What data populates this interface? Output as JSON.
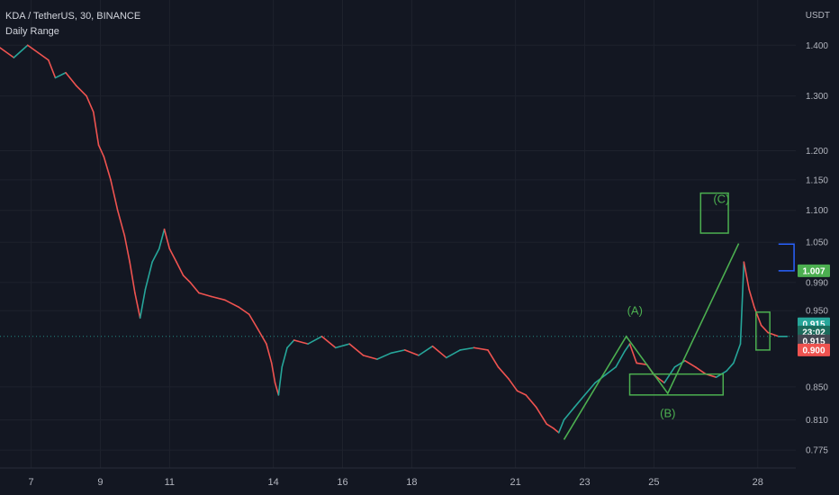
{
  "header": {
    "title": "KDA / TetherUS, 30, BINANCE",
    "indicator": "Daily Range",
    "unit": "USDT"
  },
  "colors": {
    "background": "#131722",
    "up": "#26a69a",
    "down": "#ef5350",
    "pattern": "#4caf50",
    "daily_range": "#2962ff",
    "grid": "#1e222d",
    "text": "#b2b5be"
  },
  "chart_data": {
    "type": "line",
    "symbol": "KDA / TetherUS",
    "interval": "30",
    "exchange": "BINANCE",
    "scale": "log",
    "grid": true,
    "x_ticks": [
      {
        "label": "7",
        "day": 7
      },
      {
        "label": "9",
        "day": 9
      },
      {
        "label": "11",
        "day": 11
      },
      {
        "label": "14",
        "day": 14
      },
      {
        "label": "16",
        "day": 16
      },
      {
        "label": "18",
        "day": 18
      },
      {
        "label": "21",
        "day": 21
      },
      {
        "label": "23",
        "day": 23
      },
      {
        "label": "25",
        "day": 25
      },
      {
        "label": "28",
        "day": 28
      }
    ],
    "y_ticks": [
      "1.400",
      "1.300",
      "1.200",
      "1.150",
      "1.100",
      "1.050",
      "0.990",
      "0.950",
      "0.850",
      "0.810",
      "0.775"
    ],
    "x_range": [
      6.1,
      29.1
    ],
    "y_range": [
      0.755,
      1.48
    ],
    "series": [
      {
        "points": [
          [
            6.1,
            1.395
          ],
          [
            6.5,
            1.375
          ],
          [
            6.9,
            1.4
          ],
          [
            7.2,
            1.385
          ],
          [
            7.5,
            1.37
          ],
          [
            7.7,
            1.335
          ],
          [
            8.0,
            1.345
          ],
          [
            8.3,
            1.32
          ],
          [
            8.6,
            1.3
          ],
          [
            8.8,
            1.27
          ],
          [
            8.95,
            1.21
          ],
          [
            9.1,
            1.19
          ],
          [
            9.3,
            1.15
          ],
          [
            9.5,
            1.1
          ],
          [
            9.7,
            1.06
          ],
          [
            9.85,
            1.02
          ],
          [
            10.0,
            0.975
          ],
          [
            10.15,
            0.94
          ],
          [
            10.3,
            0.98
          ],
          [
            10.5,
            1.02
          ],
          [
            10.7,
            1.04
          ],
          [
            10.85,
            1.07
          ],
          [
            11.0,
            1.04
          ],
          [
            11.2,
            1.02
          ],
          [
            11.4,
            1.0
          ],
          [
            11.6,
            0.99
          ],
          [
            11.85,
            0.975
          ],
          [
            12.2,
            0.97
          ],
          [
            12.6,
            0.965
          ],
          [
            13.0,
            0.955
          ],
          [
            13.3,
            0.945
          ],
          [
            13.55,
            0.925
          ],
          [
            13.8,
            0.905
          ],
          [
            13.95,
            0.88
          ],
          [
            14.05,
            0.855
          ],
          [
            14.15,
            0.84
          ],
          [
            14.25,
            0.875
          ],
          [
            14.4,
            0.9
          ],
          [
            14.6,
            0.91
          ],
          [
            15.0,
            0.905
          ],
          [
            15.4,
            0.915
          ],
          [
            15.8,
            0.9
          ],
          [
            16.2,
            0.905
          ],
          [
            16.6,
            0.89
          ],
          [
            17.0,
            0.885
          ],
          [
            17.4,
            0.893
          ],
          [
            17.8,
            0.897
          ],
          [
            18.2,
            0.89
          ],
          [
            18.6,
            0.902
          ],
          [
            19.0,
            0.887
          ],
          [
            19.4,
            0.897
          ],
          [
            19.8,
            0.9
          ],
          [
            20.2,
            0.897
          ],
          [
            20.5,
            0.875
          ],
          [
            20.8,
            0.86
          ],
          [
            21.05,
            0.845
          ],
          [
            21.3,
            0.84
          ],
          [
            21.6,
            0.825
          ],
          [
            21.9,
            0.805
          ],
          [
            22.1,
            0.8
          ],
          [
            22.25,
            0.795
          ],
          [
            22.4,
            0.81
          ],
          [
            22.7,
            0.825
          ],
          [
            23.0,
            0.84
          ],
          [
            23.3,
            0.855
          ],
          [
            23.6,
            0.865
          ],
          [
            23.9,
            0.875
          ],
          [
            24.15,
            0.895
          ],
          [
            24.3,
            0.905
          ],
          [
            24.5,
            0.88
          ],
          [
            24.8,
            0.878
          ],
          [
            25.0,
            0.865
          ],
          [
            25.3,
            0.855
          ],
          [
            25.6,
            0.875
          ],
          [
            25.9,
            0.883
          ],
          [
            26.2,
            0.875
          ],
          [
            26.5,
            0.866
          ],
          [
            26.8,
            0.862
          ],
          [
            27.1,
            0.87
          ],
          [
            27.3,
            0.88
          ],
          [
            27.5,
            0.905
          ],
          [
            27.6,
            1.02
          ],
          [
            27.75,
            0.98
          ],
          [
            27.9,
            0.955
          ],
          [
            28.1,
            0.93
          ],
          [
            28.3,
            0.92
          ],
          [
            28.6,
            0.915
          ],
          [
            28.85,
            0.915
          ]
        ]
      }
    ],
    "annotations": [
      {
        "label": "(A)",
        "day": 24.45,
        "price": 0.945
      },
      {
        "label": "(B)",
        "day": 25.4,
        "price": 0.813
      },
      {
        "label": "(C)",
        "day": 26.95,
        "price": 1.112
      }
    ],
    "pattern_lines": [
      [
        22.4,
        0.787
      ],
      [
        24.2,
        0.915
      ],
      [
        25.4,
        0.842
      ],
      [
        27.45,
        1.048
      ]
    ],
    "boxes": [
      {
        "day_from": 24.3,
        "day_to": 27.0,
        "price_top": 0.866,
        "price_bottom": 0.84
      },
      {
        "day_from": 26.35,
        "day_to": 27.15,
        "price_top": 1.128,
        "price_bottom": 1.064
      },
      {
        "day_from": 27.95,
        "day_to": 28.35,
        "price_top": 0.948,
        "price_bottom": 0.897
      }
    ],
    "daily_range": {
      "day_from": 28.6,
      "day_to": 29.05,
      "high": 1.047,
      "low": 1.007
    },
    "current_price": 0.915,
    "price_labels": [
      {
        "text": "1.007",
        "price": 1.007,
        "color": "#4caf50"
      },
      {
        "text": "0.915",
        "price": 0.932,
        "color": "#26a69a"
      },
      {
        "text": "23:02",
        "price": 0.921,
        "color": "#1b6b5c"
      },
      {
        "text": "0.915",
        "price": 0.909,
        "color": "#434651"
      },
      {
        "text": "0.900",
        "price": 0.897,
        "color": "#ef5350"
      }
    ]
  }
}
